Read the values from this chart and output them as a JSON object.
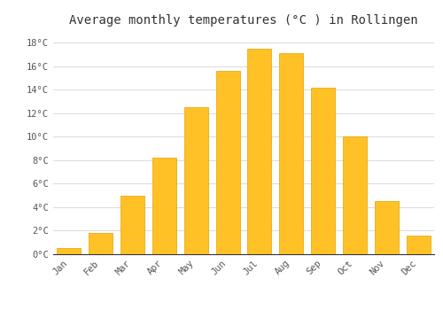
{
  "months": [
    "Jan",
    "Feb",
    "Mar",
    "Apr",
    "May",
    "Jun",
    "Jul",
    "Aug",
    "Sep",
    "Oct",
    "Nov",
    "Dec"
  ],
  "values": [
    0.5,
    1.8,
    5.0,
    8.2,
    12.5,
    15.6,
    17.5,
    17.1,
    14.2,
    10.0,
    4.5,
    1.6
  ],
  "bar_color": "#FFC125",
  "bar_edge_color": "#E8A000",
  "title": "Average monthly temperatures (°C ) in Rollingen",
  "title_fontsize": 10,
  "ylabel_ticks": [
    0,
    2,
    4,
    6,
    8,
    10,
    12,
    14,
    16,
    18
  ],
  "tick_labels": [
    "0°C",
    "2°C",
    "4°C",
    "6°C",
    "8°C",
    "10°C",
    "12°C",
    "14°C",
    "16°C",
    "18°C"
  ],
  "ylim": [
    0,
    19.0
  ],
  "background_color": "#ffffff",
  "grid_color": "#dddddd",
  "font_family": "monospace",
  "tick_fontsize": 7.5
}
